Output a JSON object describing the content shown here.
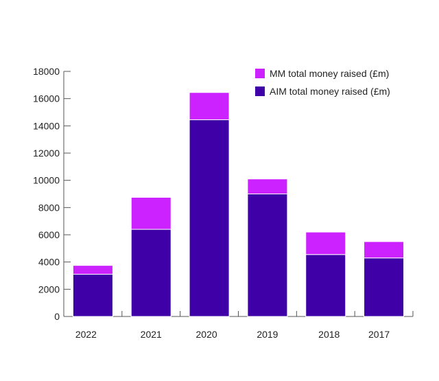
{
  "chart_data": {
    "type": "bar",
    "stacked": true,
    "title": "",
    "xlabel": "",
    "ylabel": "",
    "categories": [
      "2022",
      "2021",
      "2020",
      "2019",
      "2018",
      "2017"
    ],
    "series": [
      {
        "name": "AIM total money raised (£m)",
        "color": "#3f00a8",
        "values": [
          3100,
          6400,
          14450,
          9000,
          4550,
          4300
        ]
      },
      {
        "name": "MM total money raised (£m)",
        "color": "#cc22ff",
        "values": [
          650,
          2350,
          2000,
          1100,
          1650,
          1200
        ]
      }
    ],
    "ylim": [
      0,
      18000
    ],
    "yticks": [
      0,
      2000,
      4000,
      6000,
      8000,
      10000,
      12000,
      14000,
      16000,
      18000
    ],
    "grid": false,
    "legend": {
      "position": "top-right",
      "entries": [
        {
          "label": "MM total money raised (£m)",
          "color": "#cc22ff"
        },
        {
          "label": "AIM total money raised (£m)",
          "color": "#3f00a8"
        }
      ]
    }
  }
}
